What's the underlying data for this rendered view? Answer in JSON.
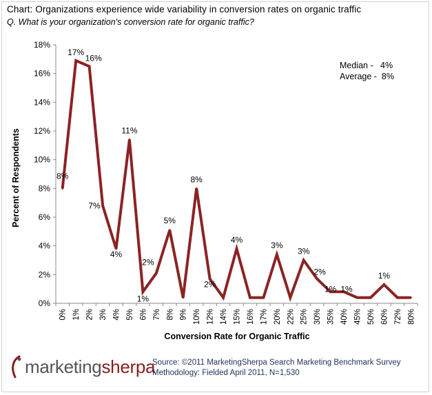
{
  "header": {
    "title": "Chart: Organizations experience wide variability in conversion rates on organic traffic",
    "question": "Q. What is your organization's conversion rate for organic traffic?"
  },
  "stats": {
    "median": "Median -   4%",
    "average": "Average -  8%"
  },
  "footer": {
    "logo_part1": "marketing",
    "logo_part2": "sherpa",
    "source": "Source: ©2011 MarketingSherpa Search Marketing Benchmark Survey",
    "methodology": "Methodology: Fielded April 2011, N=1,530"
  },
  "colors": {
    "line": "#8b2323",
    "logo_accent": "#8c1c1c",
    "footer_text": "#1f2f5c"
  },
  "chart_data": {
    "type": "line",
    "title": "Chart: Organizations experience wide variability in conversion rates on organic traffic",
    "xlabel": "Conversion Rate for Organic Traffic",
    "ylabel": "Percent of Respondents",
    "ylim": [
      0,
      18
    ],
    "yticks": [
      "0%",
      "2%",
      "4%",
      "6%",
      "8%",
      "10%",
      "12%",
      "14%",
      "16%",
      "18%"
    ],
    "grid": false,
    "categories": [
      "0%",
      "1%",
      "2%",
      "3%",
      "4%",
      "5%",
      "6%",
      "7%",
      "8%",
      "9%",
      "10%",
      "12%",
      "14%",
      "15%",
      "16%",
      "17%",
      "20%",
      "22%",
      "25%",
      "30%",
      "35%",
      "40%",
      "45%",
      "50%",
      "60%",
      "72%",
      "80%"
    ],
    "values": [
      8.0,
      16.9,
      16.5,
      6.8,
      3.8,
      11.4,
      0.8,
      2.1,
      5.1,
      0.4,
      8.0,
      1.7,
      0.4,
      3.8,
      0.4,
      0.4,
      3.4,
      0.4,
      3.0,
      1.7,
      0.8,
      0.8,
      0.4,
      0.4,
      1.3,
      0.4,
      0.4
    ],
    "data_labels": [
      "8%",
      "17%",
      "16%",
      "7%",
      "4%",
      "11%",
      "1%",
      "2%",
      "5%",
      "",
      "8%",
      "2%",
      "",
      "4%",
      "",
      "",
      "3%",
      "",
      "3%",
      "2%",
      "1%",
      "1%",
      "",
      "",
      "1%",
      "",
      ""
    ]
  }
}
